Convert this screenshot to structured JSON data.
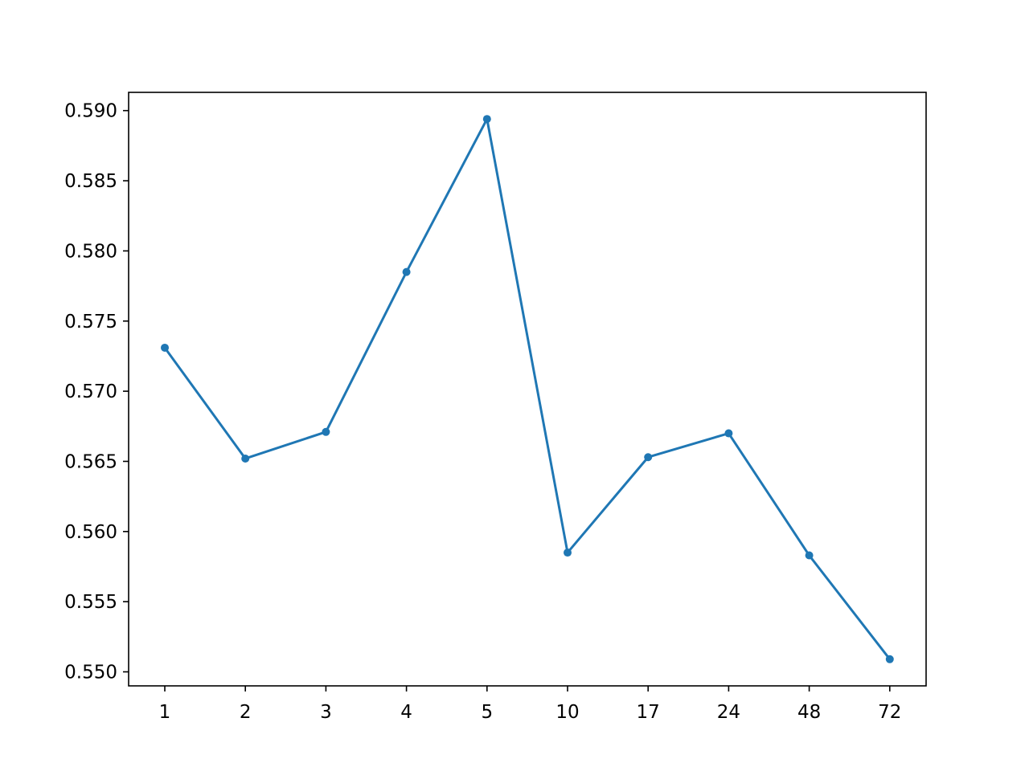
{
  "chart_data": {
    "type": "line",
    "categories": [
      "1",
      "2",
      "3",
      "4",
      "5",
      "10",
      "17",
      "24",
      "48",
      "72"
    ],
    "series": [
      {
        "values": [
          0.5731,
          0.5652,
          0.5671,
          0.5785,
          0.5894,
          0.5585,
          0.5653,
          0.567,
          0.5583,
          0.5509
        ],
        "color": "#1f77b4",
        "marker": "circle"
      }
    ],
    "yticks": [
      "0.550",
      "0.555",
      "0.560",
      "0.565",
      "0.570",
      "0.575",
      "0.580",
      "0.585",
      "0.590"
    ],
    "ylim": [
      0.549,
      0.5913
    ],
    "title": "",
    "xlabel": "",
    "ylabel": "",
    "grid": false,
    "legend": "none"
  }
}
